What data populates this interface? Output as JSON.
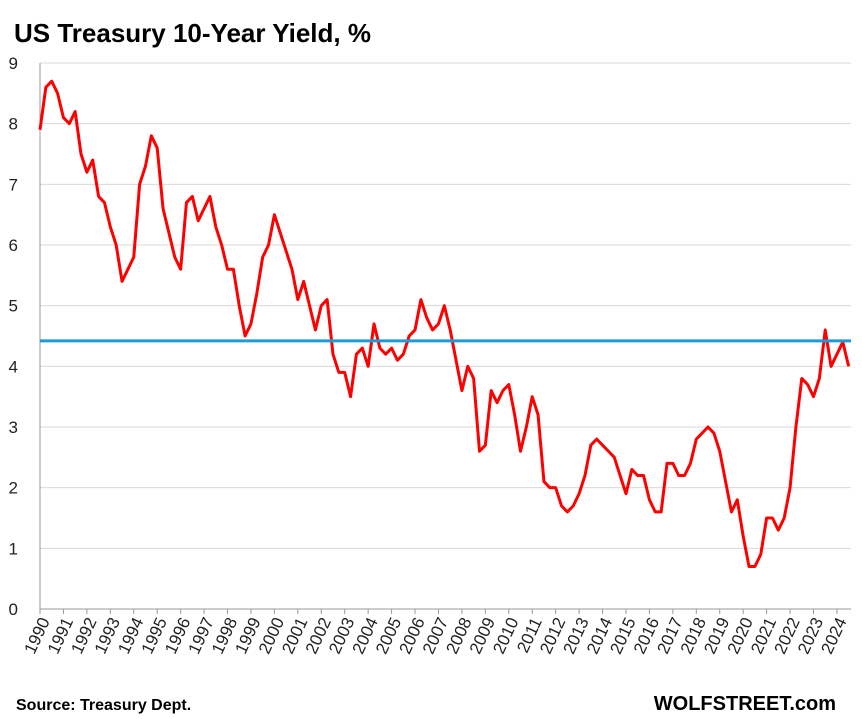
{
  "chart_data": {
    "type": "line",
    "title": "US Treasury 10-Year Yield, %",
    "source": "Source: Treasury Dept.",
    "credit": "WOLFSTREET.com",
    "xlim": [
      1990,
      2024.6
    ],
    "xticks": [
      1990,
      1991,
      1992,
      1993,
      1994,
      1995,
      1996,
      1997,
      1998,
      1999,
      2000,
      2001,
      2002,
      2003,
      2004,
      2005,
      2006,
      2007,
      2008,
      2009,
      2010,
      2011,
      2012,
      2013,
      2014,
      2015,
      2016,
      2017,
      2018,
      2019,
      2020,
      2021,
      2022,
      2023,
      2024
    ],
    "ylim": [
      0,
      9
    ],
    "yticks": [
      0,
      1,
      2,
      3,
      4,
      5,
      6,
      7,
      8,
      9
    ],
    "grid": true,
    "reference_line": {
      "value": 4.42,
      "color": "#1e9ad6"
    },
    "x": [
      1990,
      1990.25,
      1990.5,
      1990.75,
      1991,
      1991.25,
      1991.5,
      1991.75,
      1992,
      1992.25,
      1992.5,
      1992.75,
      1993,
      1993.25,
      1993.5,
      1993.75,
      1994,
      1994.25,
      1994.5,
      1994.75,
      1995,
      1995.25,
      1995.5,
      1995.75,
      1996,
      1996.25,
      1996.5,
      1996.75,
      1997,
      1997.25,
      1997.5,
      1997.75,
      1998,
      1998.25,
      1998.5,
      1998.75,
      1999,
      1999.25,
      1999.5,
      1999.75,
      2000,
      2000.25,
      2000.5,
      2000.75,
      2001,
      2001.25,
      2001.5,
      2001.75,
      2002,
      2002.25,
      2002.5,
      2002.75,
      2003,
      2003.25,
      2003.5,
      2003.75,
      2004,
      2004.25,
      2004.5,
      2004.75,
      2005,
      2005.25,
      2005.5,
      2005.75,
      2006,
      2006.25,
      2006.5,
      2006.75,
      2007,
      2007.25,
      2007.5,
      2007.75,
      2008,
      2008.25,
      2008.5,
      2008.75,
      2009,
      2009.25,
      2009.5,
      2009.75,
      2010,
      2010.25,
      2010.5,
      2010.75,
      2011,
      2011.25,
      2011.5,
      2011.75,
      2012,
      2012.25,
      2012.5,
      2012.75,
      2013,
      2013.25,
      2013.5,
      2013.75,
      2014,
      2014.25,
      2014.5,
      2014.75,
      2015,
      2015.25,
      2015.5,
      2015.75,
      2016,
      2016.25,
      2016.5,
      2016.75,
      2017,
      2017.25,
      2017.5,
      2017.75,
      2018,
      2018.25,
      2018.5,
      2018.75,
      2019,
      2019.25,
      2019.5,
      2019.75,
      2020,
      2020.25,
      2020.5,
      2020.75,
      2021,
      2021.25,
      2021.5,
      2021.75,
      2022,
      2022.25,
      2022.5,
      2022.75,
      2023,
      2023.25,
      2023.5,
      2023.75,
      2024,
      2024.25,
      2024.5
    ],
    "series": [
      {
        "name": "10-Year Yield",
        "color": "#ff0000",
        "values": [
          7.9,
          8.6,
          8.7,
          8.5,
          8.1,
          8.0,
          8.2,
          7.5,
          7.2,
          7.4,
          6.8,
          6.7,
          6.3,
          6.0,
          5.4,
          5.6,
          5.8,
          7.0,
          7.3,
          7.8,
          7.6,
          6.6,
          6.2,
          5.8,
          5.6,
          6.7,
          6.8,
          6.4,
          6.6,
          6.8,
          6.3,
          6.0,
          5.6,
          5.6,
          5.0,
          4.5,
          4.7,
          5.2,
          5.8,
          6.0,
          6.5,
          6.2,
          5.9,
          5.6,
          5.1,
          5.4,
          5.0,
          4.6,
          5.0,
          5.1,
          4.2,
          3.9,
          3.9,
          3.5,
          4.2,
          4.3,
          4.0,
          4.7,
          4.3,
          4.2,
          4.3,
          4.1,
          4.2,
          4.5,
          4.6,
          5.1,
          4.8,
          4.6,
          4.7,
          5.0,
          4.6,
          4.1,
          3.6,
          4.0,
          3.8,
          2.6,
          2.7,
          3.6,
          3.4,
          3.6,
          3.7,
          3.2,
          2.6,
          3.0,
          3.5,
          3.2,
          2.1,
          2.0,
          2.0,
          1.7,
          1.6,
          1.7,
          1.9,
          2.2,
          2.7,
          2.8,
          2.7,
          2.6,
          2.5,
          2.2,
          1.9,
          2.3,
          2.2,
          2.2,
          1.8,
          1.6,
          1.6,
          2.4,
          2.4,
          2.2,
          2.2,
          2.4,
          2.8,
          2.9,
          3.0,
          2.9,
          2.6,
          2.1,
          1.6,
          1.8,
          1.2,
          0.7,
          0.7,
          0.9,
          1.5,
          1.5,
          1.3,
          1.5,
          2.0,
          3.0,
          3.8,
          3.7,
          3.5,
          3.8,
          4.6,
          4.0,
          4.2,
          4.4,
          4.0
        ]
      }
    ]
  }
}
